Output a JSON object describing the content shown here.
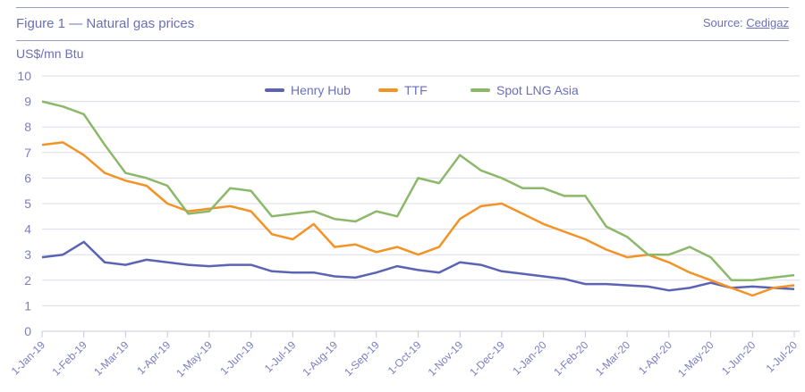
{
  "header": {
    "title": "Figure 1 — Natural gas prices",
    "source_label": "Source:",
    "source_link": "Cedigaz"
  },
  "chart_data": {
    "type": "line",
    "title": "Figure 1 — Natural gas prices",
    "ylabel": "US$/mn Btu",
    "xlabel": "",
    "ylim": [
      0,
      10
    ],
    "yticks": [
      "0",
      "1",
      "2",
      "3",
      "4",
      "5",
      "6",
      "7",
      "8",
      "9",
      "10"
    ],
    "xticks": [
      "1-Jan-19",
      "1-Feb-19",
      "1-Mar-19",
      "1-Apr-19",
      "1-May-19",
      "1-Jun-19",
      "1-Jul-19",
      "1-Aug-19",
      "1-Sep-19",
      "1-Oct-19",
      "1-Nov-19",
      "1-Dec-19",
      "1-Jan-20",
      "1-Feb-20",
      "1-Mar-20",
      "1-Apr-20",
      "1-May-20",
      "1-Jun-20",
      "1-Jul-20"
    ],
    "x_unit": "months since 1-Jan-19",
    "x": [
      0,
      0.5,
      1,
      1.5,
      2,
      2.5,
      3,
      3.5,
      4,
      4.5,
      5,
      5.5,
      6,
      6.5,
      7,
      7.5,
      8,
      8.5,
      9,
      9.5,
      10,
      10.5,
      11,
      11.5,
      12,
      12.5,
      13,
      13.5,
      14,
      14.5,
      15,
      15.5,
      16,
      16.5,
      17,
      17.5,
      18
    ],
    "legend_position": "top-center",
    "grid": true,
    "series": [
      {
        "name": "Henry Hub",
        "color": "#5b63b5",
        "values": [
          2.9,
          3.0,
          3.5,
          2.7,
          2.6,
          2.8,
          2.7,
          2.6,
          2.55,
          2.6,
          2.6,
          2.35,
          2.3,
          2.3,
          2.15,
          2.1,
          2.3,
          2.55,
          2.4,
          2.3,
          2.7,
          2.6,
          2.35,
          2.25,
          2.15,
          2.05,
          1.85,
          1.85,
          1.8,
          1.75,
          1.6,
          1.7,
          1.9,
          1.7,
          1.75,
          1.7,
          1.65
        ]
      },
      {
        "name": "TTF",
        "color": "#f39325",
        "values": [
          7.3,
          7.4,
          6.9,
          6.2,
          5.9,
          5.7,
          5.0,
          4.7,
          4.8,
          4.9,
          4.7,
          3.8,
          3.6,
          4.2,
          3.3,
          3.4,
          3.1,
          3.3,
          3.0,
          3.3,
          4.4,
          4.9,
          5.0,
          4.6,
          4.2,
          3.9,
          3.6,
          3.2,
          2.9,
          3.0,
          2.7,
          2.3,
          2.0,
          1.7,
          1.4,
          1.7,
          1.8
        ]
      },
      {
        "name": "Spot LNG Asia",
        "color": "#8cb86a",
        "values": [
          9.0,
          8.8,
          8.5,
          7.3,
          6.2,
          6.0,
          5.7,
          4.6,
          4.7,
          5.6,
          5.5,
          4.5,
          4.6,
          4.7,
          4.4,
          4.3,
          4.7,
          4.5,
          6.0,
          5.8,
          6.9,
          6.3,
          6.0,
          5.6,
          5.6,
          5.3,
          5.3,
          4.1,
          3.7,
          3.0,
          3.0,
          3.3,
          2.9,
          2.0,
          2.0,
          2.1,
          2.2
        ]
      }
    ]
  }
}
